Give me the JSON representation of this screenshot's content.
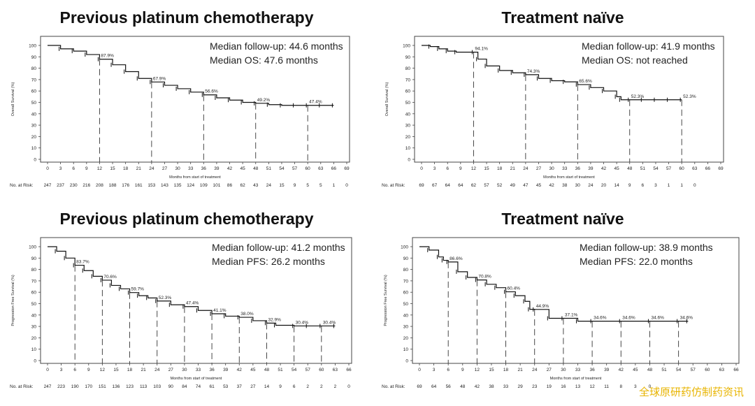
{
  "watermark": "全球原研药仿制药资讯",
  "at_risk_label": "No. at Risk:",
  "chart_data": [
    {
      "type": "line",
      "title": "Previous platinum chemotherapy",
      "ylabel": "Overall Survival (%)",
      "xlabel": "Months from start of treatment",
      "xlim": [
        0,
        69
      ],
      "ylim": [
        0,
        100
      ],
      "xticks": [
        0,
        3,
        6,
        9,
        12,
        15,
        18,
        21,
        24,
        27,
        30,
        33,
        36,
        39,
        42,
        45,
        48,
        51,
        54,
        57,
        60,
        63,
        66,
        69
      ],
      "yticks": [
        0,
        10,
        20,
        30,
        40,
        50,
        60,
        70,
        80,
        90,
        100
      ],
      "annotations": [
        "Median follow-up: 44.6 months",
        "Median OS: 47.6 months"
      ],
      "landmarks": [
        {
          "x": 12,
          "y": 87.9,
          "label": "87.9%"
        },
        {
          "x": 24,
          "y": 67.9,
          "label": "67.9%"
        },
        {
          "x": 36,
          "y": 56.6,
          "label": "56.6%"
        },
        {
          "x": 48,
          "y": 49.2,
          "label": "49.2%"
        },
        {
          "x": 60,
          "y": 47.4,
          "label": "47.4%"
        }
      ],
      "x": [
        0,
        3,
        6,
        9,
        12,
        15,
        18,
        21,
        24,
        27,
        30,
        33,
        36,
        39,
        42,
        45,
        48,
        51,
        54,
        57,
        60,
        63,
        66
      ],
      "y": [
        100,
        97,
        95,
        92,
        87.9,
        83,
        77,
        71,
        67.9,
        65,
        62,
        59,
        56.6,
        54,
        52,
        50,
        49.2,
        48,
        47.4,
        47.4,
        47.4,
        47.4,
        47.4
      ],
      "at_risk": [
        247,
        237,
        230,
        216,
        208,
        188,
        176,
        161,
        153,
        143,
        135,
        124,
        109,
        101,
        86,
        62,
        43,
        24,
        15,
        9,
        5,
        5,
        1,
        0
      ]
    },
    {
      "type": "line",
      "title": "Treatment naïve",
      "ylabel": "Overall Survival (%)",
      "xlabel": "Months from start of treatment",
      "xlim": [
        0,
        69
      ],
      "ylim": [
        0,
        100
      ],
      "xticks": [
        0,
        3,
        6,
        9,
        12,
        15,
        18,
        21,
        24,
        27,
        30,
        33,
        36,
        39,
        42,
        45,
        48,
        51,
        54,
        57,
        60,
        63,
        66,
        69
      ],
      "yticks": [
        0,
        10,
        20,
        30,
        40,
        50,
        60,
        70,
        80,
        90,
        100
      ],
      "annotations": [
        "Median follow-up: 41.9 months",
        "Median OS: not reached"
      ],
      "landmarks": [
        {
          "x": 12,
          "y": 94.1,
          "label": "94.1%"
        },
        {
          "x": 24,
          "y": 74.3,
          "label": "74.3%"
        },
        {
          "x": 36,
          "y": 65.6,
          "label": "65.6%"
        },
        {
          "x": 48,
          "y": 52.3,
          "label": "52.3%"
        },
        {
          "x": 60,
          "y": 52.3,
          "label": "52.3%"
        }
      ],
      "x": [
        0,
        2,
        4,
        6,
        8,
        12,
        13,
        15,
        18,
        21,
        24,
        27,
        30,
        33,
        36,
        39,
        42,
        45,
        46,
        48,
        51,
        54,
        57,
        60
      ],
      "y": [
        100,
        99,
        97,
        95,
        94.1,
        94.1,
        88,
        82,
        78,
        76,
        74.3,
        71,
        69,
        68,
        65.6,
        63,
        60,
        55,
        52.3,
        52.3,
        52.3,
        52.3,
        52.3,
        52.3
      ],
      "at_risk": [
        69,
        67,
        64,
        64,
        62,
        57,
        52,
        49,
        47,
        45,
        42,
        38,
        30,
        24,
        20,
        14,
        9,
        6,
        3,
        1,
        1,
        0
      ]
    },
    {
      "type": "line",
      "title": "Previous platinum chemotherapy",
      "ylabel": "Progression Free Survival (%)",
      "xlabel": "Months from start of treatment",
      "xlim": [
        0,
        66
      ],
      "ylim": [
        0,
        100
      ],
      "xticks": [
        0,
        3,
        6,
        9,
        12,
        15,
        18,
        21,
        24,
        27,
        30,
        33,
        36,
        39,
        42,
        45,
        48,
        51,
        54,
        57,
        60,
        63,
        66
      ],
      "yticks": [
        0,
        10,
        20,
        30,
        40,
        50,
        60,
        70,
        80,
        90,
        100
      ],
      "annotations": [
        "Median follow-up: 41.2 months",
        "Median PFS: 26.2 months"
      ],
      "landmarks": [
        {
          "x": 6,
          "y": 83.7,
          "label": "83.7%"
        },
        {
          "x": 12,
          "y": 70.6,
          "label": "70.6%"
        },
        {
          "x": 18,
          "y": 59.7,
          "label": "59.7%"
        },
        {
          "x": 24,
          "y": 52.3,
          "label": "52.3%"
        },
        {
          "x": 30,
          "y": 47.4,
          "label": "47.4%"
        },
        {
          "x": 36,
          "y": 41.1,
          "label": "41.1%"
        },
        {
          "x": 42,
          "y": 38.0,
          "label": "38.0%"
        },
        {
          "x": 48,
          "y": 32.9,
          "label": "32.9%"
        },
        {
          "x": 54,
          "y": 30.4,
          "label": "30.4%"
        },
        {
          "x": 60,
          "y": 30.4,
          "label": "30.4%"
        }
      ],
      "x": [
        0,
        2,
        4,
        6,
        8,
        10,
        12,
        14,
        16,
        18,
        20,
        22,
        24,
        27,
        30,
        33,
        36,
        39,
        42,
        45,
        48,
        50,
        54,
        57,
        60,
        63
      ],
      "y": [
        100,
        96,
        90,
        83.7,
        79,
        74,
        70.6,
        66,
        63,
        59.7,
        57,
        55,
        52.3,
        49,
        47.4,
        44,
        41.1,
        39,
        38.0,
        35,
        32.9,
        31,
        30.4,
        30.4,
        30.4,
        30.4
      ],
      "at_risk": [
        247,
        223,
        190,
        170,
        151,
        136,
        123,
        113,
        103,
        90,
        84,
        74,
        61,
        53,
        37,
        27,
        14,
        9,
        6,
        2,
        2,
        2,
        0
      ]
    },
    {
      "type": "line",
      "title": "Treatment naïve",
      "ylabel": "Progression Free Survival (%)",
      "xlabel": "Months from start of treatment",
      "xlim": [
        0,
        66
      ],
      "ylim": [
        0,
        100
      ],
      "xticks": [
        0,
        3,
        6,
        9,
        12,
        15,
        18,
        21,
        24,
        27,
        30,
        33,
        36,
        39,
        42,
        45,
        48,
        51,
        54,
        57,
        60,
        63,
        66
      ],
      "yticks": [
        0,
        10,
        20,
        30,
        40,
        50,
        60,
        70,
        80,
        90,
        100
      ],
      "annotations": [
        "Median follow-up: 38.9 months",
        "Median PFS: 22.0 months"
      ],
      "landmarks": [
        {
          "x": 6,
          "y": 86.6,
          "label": "86.6%"
        },
        {
          "x": 12,
          "y": 70.8,
          "label": "70.8%"
        },
        {
          "x": 18,
          "y": 60.4,
          "label": "60.4%"
        },
        {
          "x": 24,
          "y": 44.9,
          "label": "44.9%"
        },
        {
          "x": 30,
          "y": 37.1,
          "label": "37.1%"
        },
        {
          "x": 36,
          "y": 34.6,
          "label": "34.6%"
        },
        {
          "x": 42,
          "y": 34.6,
          "label": "34.6%"
        },
        {
          "x": 48,
          "y": 34.6,
          "label": "34.6%"
        },
        {
          "x": 54,
          "y": 34.6,
          "label": "34.6%"
        }
      ],
      "x": [
        0,
        2,
        4,
        5,
        6,
        8,
        10,
        12,
        14,
        16,
        18,
        20,
        22,
        23,
        24,
        27,
        30,
        33,
        36,
        42,
        48,
        54,
        56
      ],
      "y": [
        100,
        97,
        91,
        88,
        86.6,
        78,
        73,
        70.8,
        67,
        64,
        60.4,
        57,
        52,
        45,
        44.9,
        37.1,
        37.1,
        34.6,
        34.6,
        34.6,
        34.6,
        34.6,
        34.6
      ],
      "at_risk": [
        69,
        64,
        56,
        48,
        42,
        38,
        33,
        29,
        23,
        19,
        16,
        13,
        12,
        11,
        8,
        3,
        0
      ]
    }
  ]
}
